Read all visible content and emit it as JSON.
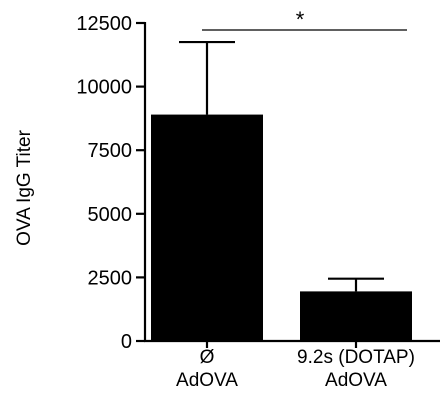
{
  "chart_data": {
    "type": "bar",
    "title": "",
    "xlabel": "",
    "ylabel": "OVA IgG Titer",
    "ylim": [
      0,
      12500
    ],
    "yticks": [
      0,
      2500,
      5000,
      7500,
      10000,
      12500
    ],
    "ytick_labels": [
      "0",
      "2500",
      "5000",
      "7500",
      "10000",
      "12500"
    ],
    "grid": false,
    "legend": "none",
    "categories": [
      {
        "line1": "Ø",
        "line2": "AdOVA"
      },
      {
        "line1": "9.2s (DOTAP)",
        "line2": "AdOVA"
      }
    ],
    "values": [
      8900,
      1950
    ],
    "error_upper": [
      2850,
      500
    ],
    "bar_color": "#000000",
    "significance": {
      "between": [
        0,
        1
      ],
      "label": "*"
    }
  }
}
